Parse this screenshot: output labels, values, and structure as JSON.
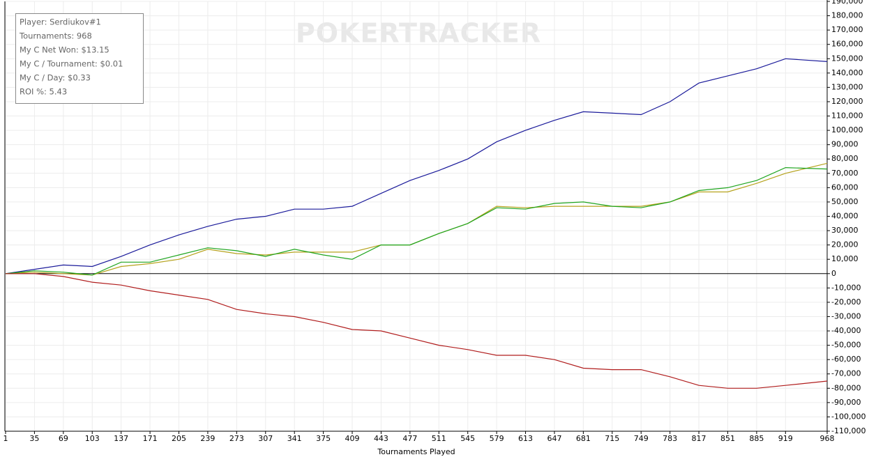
{
  "chart_data": {
    "type": "line",
    "watermark": "POKERTRACKER",
    "info": [
      "Player: Serdiukov#1",
      "Tournaments: 968",
      "My C Net Won: $13.15",
      "My C / Tournament: $0.01",
      "My C / Day: $0.33",
      "ROI %: 5.43"
    ],
    "x_label": "Tournaments Played",
    "x": [
      1,
      35,
      69,
      103,
      137,
      171,
      205,
      239,
      273,
      307,
      341,
      375,
      409,
      443,
      477,
      511,
      545,
      579,
      613,
      647,
      681,
      715,
      749,
      783,
      817,
      851,
      885,
      919,
      968
    ],
    "series": [
      {
        "color": "#1a1a9a",
        "values": [
          0,
          3000,
          6000,
          5000,
          12000,
          20000,
          27000,
          33000,
          38000,
          40000,
          45000,
          45000,
          47000,
          56000,
          65000,
          72000,
          80000,
          92000,
          100000,
          107000,
          113000,
          112000,
          111000,
          120000,
          133000,
          138000,
          143000,
          150000,
          148000
        ]
      },
      {
        "color": "#b5a21c",
        "values": [
          0,
          1000,
          0,
          -1000,
          5000,
          7000,
          10000,
          17000,
          14000,
          13000,
          15000,
          15000,
          15000,
          20000,
          20000,
          28000,
          35000,
          47000,
          46000,
          47000,
          47000,
          47000,
          47000,
          50000,
          57000,
          57000,
          63000,
          70000,
          77000
        ]
      },
      {
        "color": "#1fa51f",
        "values": [
          0,
          2000,
          1000,
          -1000,
          8000,
          8000,
          13000,
          18000,
          16000,
          12000,
          17000,
          13000,
          10000,
          20000,
          20000,
          28000,
          35000,
          46000,
          45000,
          49000,
          50000,
          47000,
          46000,
          50000,
          58000,
          60000,
          65000,
          74000,
          73000
        ]
      },
      {
        "color": "#b01c1c",
        "values": [
          0,
          0,
          -2000,
          -6000,
          -8000,
          -12000,
          -15000,
          -18000,
          -25000,
          -28000,
          -30000,
          -34000,
          -39000,
          -40000,
          -45000,
          -50000,
          -53000,
          -57000,
          -57000,
          -60000,
          -66000,
          -67000,
          -67000,
          -72000,
          -78000,
          -80000,
          -80000,
          -78000,
          -75000
        ]
      }
    ],
    "xlim": [
      1,
      968
    ],
    "xticks": [
      1,
      35,
      69,
      103,
      137,
      171,
      205,
      239,
      273,
      307,
      341,
      375,
      409,
      443,
      477,
      511,
      545,
      579,
      613,
      647,
      681,
      715,
      749,
      783,
      817,
      851,
      885,
      919,
      968
    ],
    "ylim": [
      -110000,
      190000
    ],
    "yticks": [
      {
        "value": 190000,
        "label": "190,000"
      },
      {
        "value": 180000,
        "label": "180,000"
      },
      {
        "value": 170000,
        "label": "170,000"
      },
      {
        "value": 160000,
        "label": "160,000"
      },
      {
        "value": 150000,
        "label": "150,000"
      },
      {
        "value": 140000,
        "label": "140,000"
      },
      {
        "value": 130000,
        "label": "130,000"
      },
      {
        "value": 120000,
        "label": "120,000"
      },
      {
        "value": 110000,
        "label": "110,000"
      },
      {
        "value": 100000,
        "label": "100,000"
      },
      {
        "value": 90000,
        "label": "90,000"
      },
      {
        "value": 80000,
        "label": "80,000"
      },
      {
        "value": 70000,
        "label": "70,000"
      },
      {
        "value": 60000,
        "label": "60,000"
      },
      {
        "value": 50000,
        "label": "50,000"
      },
      {
        "value": 40000,
        "label": "40,000"
      },
      {
        "value": 30000,
        "label": "30,000"
      },
      {
        "value": 20000,
        "label": "20,000"
      },
      {
        "value": 10000,
        "label": "10,000"
      },
      0,
      {
        "value": -10000,
        "label": "-10,000"
      },
      {
        "value": -20000,
        "label": "-20,000"
      },
      {
        "value": -30000,
        "label": "-30,000"
      },
      {
        "value": -40000,
        "label": "-40,000"
      },
      {
        "value": -50000,
        "label": "-50,000"
      },
      {
        "value": -60000,
        "label": "-60,000"
      },
      {
        "value": -70000,
        "label": "-70,000"
      },
      {
        "value": -80000,
        "label": "-80,000"
      },
      {
        "value": -90000,
        "label": "-90,000"
      },
      {
        "value": -100000,
        "label": "-100,000"
      },
      {
        "value": -110000,
        "label": "-110,000"
      }
    ],
    "grid": true
  }
}
